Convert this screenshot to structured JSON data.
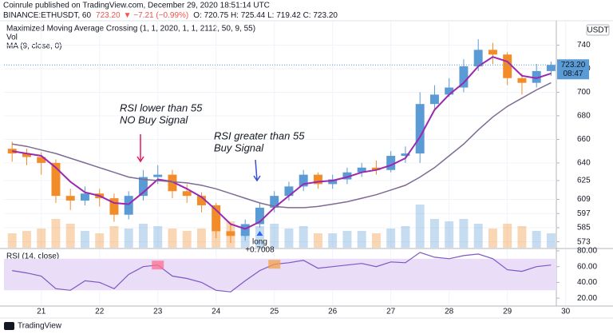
{
  "header": {
    "publisher": "Coinrule published on TradingView.com, December 29, 2020 18:51:14 UTC",
    "symbol": "BINANCE:ETHUSDT, 60",
    "last": "723.20",
    "change": "▼ −7.21 (−0.99%)",
    "ohlc": "O: 720.75  H: 725.44  L: 719.42  C: 723.20"
  },
  "chart_data": {
    "type": "candlestick",
    "indicator_labels": [
      "Maximized Moving Average Crossing (1, 1, 2020, 1, 1, 2112, 50, 9, 55)",
      "Vol",
      "MA (9, close, 0)"
    ],
    "currency": "USDT",
    "last_price": {
      "value": 723.2,
      "label": "723.20"
    },
    "countdown": "08:47",
    "x": [
      20.5,
      20.75,
      21,
      21.25,
      21.5,
      21.75,
      22,
      22.25,
      22.5,
      22.75,
      23,
      23.25,
      23.5,
      23.75,
      24,
      24.25,
      24.5,
      24.75,
      25,
      25.25,
      25.5,
      25.75,
      26,
      26.25,
      26.5,
      26.75,
      27,
      27.25,
      27.5,
      27.75,
      28,
      28.25,
      28.5,
      28.75,
      29,
      29.25,
      29.5,
      29.75
    ],
    "open": [
      652,
      648,
      645,
      640,
      612,
      608,
      614,
      610,
      596,
      612,
      628,
      630,
      616,
      612,
      604,
      582,
      578,
      588,
      602,
      612,
      620,
      630,
      622,
      626,
      632,
      636,
      634,
      646,
      648,
      690,
      698,
      704,
      722,
      736,
      732,
      712,
      708,
      718
    ],
    "high": [
      658,
      652,
      649,
      643,
      618,
      620,
      618,
      614,
      616,
      634,
      638,
      634,
      622,
      615,
      606,
      588,
      592,
      606,
      616,
      624,
      634,
      632,
      630,
      636,
      640,
      642,
      650,
      654,
      700,
      706,
      712,
      728,
      745,
      742,
      734,
      716,
      724,
      726
    ],
    "low": [
      641,
      638,
      630,
      606,
      600,
      604,
      603,
      590,
      592,
      608,
      622,
      610,
      606,
      598,
      576,
      572,
      574,
      585,
      598,
      608,
      616,
      618,
      618,
      622,
      628,
      630,
      632,
      640,
      640,
      686,
      696,
      700,
      718,
      724,
      706,
      698,
      704,
      714
    ],
    "close": [
      648,
      645,
      640,
      612,
      608,
      614,
      610,
      596,
      612,
      628,
      630,
      616,
      612,
      604,
      582,
      578,
      588,
      602,
      612,
      620,
      630,
      622,
      626,
      632,
      636,
      634,
      646,
      648,
      690,
      698,
      704,
      722,
      736,
      732,
      712,
      708,
      718,
      723.2
    ],
    "up_color": "#5b9bd5",
    "down_color": "#f28c28",
    "lines": [
      {
        "color": "#9c27b0",
        "values": [
          650,
          648,
          646,
          636,
          624,
          615,
          612,
          606,
          605,
          615,
          626,
          624,
          618,
          611,
          600,
          588,
          584,
          590,
          602,
          612,
          622,
          624,
          625,
          628,
          632,
          634,
          638,
          644,
          662,
          685,
          698,
          708,
          722,
          730,
          726,
          714,
          712,
          716
        ]
      },
      {
        "color": "#7e6a93",
        "values": [
          656,
          654,
          651,
          648,
          644,
          640,
          636,
          632,
          628,
          626,
          625,
          624,
          623,
          621,
          618,
          614,
          610,
          606,
          603,
          602,
          602,
          603,
          605,
          607,
          610,
          613,
          617,
          621,
          628,
          636,
          646,
          656,
          668,
          679,
          688,
          695,
          702,
          708
        ]
      }
    ],
    "xlim": [
      20.36,
      29.84
    ],
    "xticks": [
      21,
      22,
      23,
      24,
      25,
      26,
      27,
      28,
      29,
      30
    ],
    "ylim": [
      568,
      760
    ],
    "yticks": [
      573,
      585,
      597,
      609,
      625,
      640,
      660,
      680,
      700,
      720,
      740
    ],
    "grid": true,
    "volume": {
      "ylim": [
        0,
        100
      ],
      "values": [
        30,
        35,
        40,
        60,
        50,
        35,
        30,
        45,
        40,
        50,
        45,
        40,
        35,
        40,
        60,
        55,
        40,
        45,
        50,
        40,
        45,
        30,
        30,
        35,
        35,
        30,
        40,
        45,
        90,
        60,
        55,
        60,
        50,
        40,
        50,
        45,
        35,
        30
      ]
    },
    "rsi": {
      "label": "RSI (14, close)",
      "color": "#7e57c2",
      "band": [
        30,
        70
      ],
      "ylim": [
        11,
        82
      ],
      "yticks": [
        {
          "value": 80,
          "label": "80.00"
        },
        {
          "value": 60,
          "label": "60.00"
        },
        {
          "value": 40,
          "label": "40.00"
        },
        {
          "value": 20,
          "label": "20.00"
        }
      ],
      "values": [
        55,
        52,
        48,
        32,
        30,
        42,
        40,
        32,
        50,
        60,
        62,
        48,
        45,
        40,
        30,
        28,
        42,
        55,
        63,
        65,
        68,
        58,
        60,
        62,
        64,
        60,
        66,
        65,
        78,
        72,
        70,
        74,
        76,
        70,
        56,
        54,
        60,
        62
      ]
    },
    "annotations": [
      {
        "lines": [
          "RSI lower than 55",
          "NO Buy Signal"
        ],
        "color": "#e8175d"
      },
      {
        "lines": [
          "RSI greater than 55",
          "Buy Signal"
        ],
        "color": "#3a4fd1"
      }
    ],
    "trade": {
      "label": "long",
      "value": "+0.7008"
    }
  },
  "footer": "TradingView"
}
